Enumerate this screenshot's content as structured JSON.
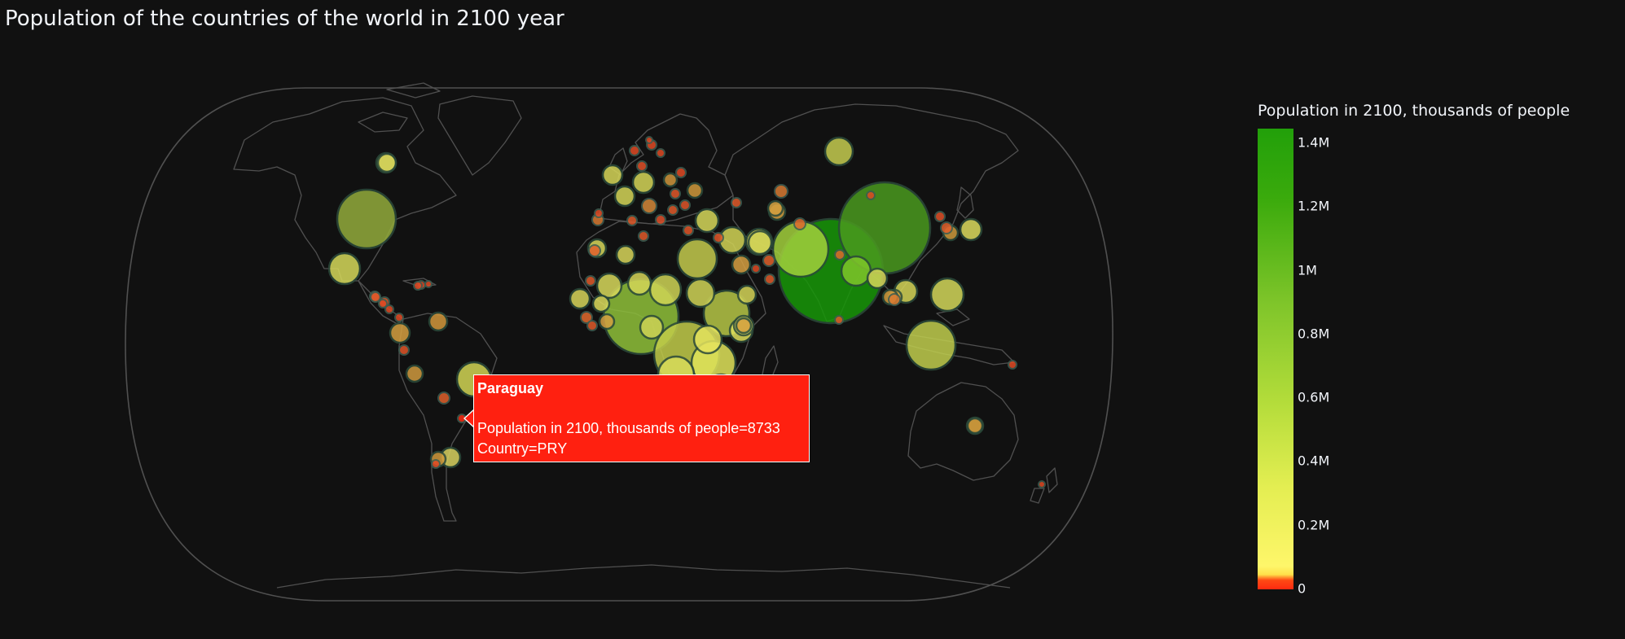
{
  "title": "Population of the countries of the world in 2100 year",
  "colorbar": {
    "title": "Population in 2100, thousands of people",
    "ticks": [
      "0",
      "0.2M",
      "0.4M",
      "0.6M",
      "0.8M",
      "1M",
      "1.2M",
      "1.4M"
    ],
    "range": [
      0,
      1450000
    ]
  },
  "tooltip": {
    "title": "Paraguay",
    "line1": "Population in 2100, thousands of people=8733",
    "line2": "Country=PRY",
    "color": "#ff2010"
  },
  "colors": {
    "background": "#111111",
    "coastline": "#505050",
    "low": "#ff2a10",
    "mid": "#fef66a",
    "high": "#22a00a"
  }
}
